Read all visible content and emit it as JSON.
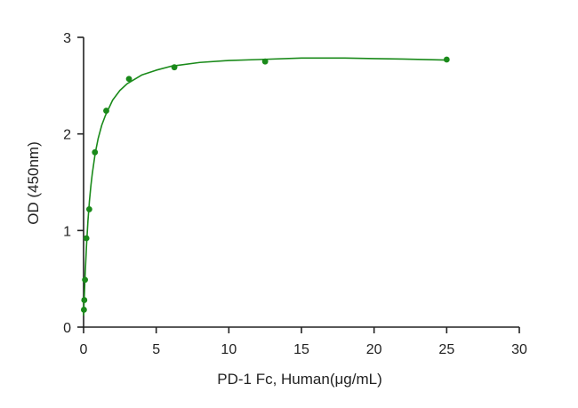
{
  "chart_data": {
    "type": "scatter",
    "xlabel": "PD-1 Fc, Human(μg/mL)",
    "ylabel": "OD (450nm)",
    "xlim": [
      0,
      30
    ],
    "ylim": [
      0,
      3
    ],
    "x_ticks": [
      "0",
      "5",
      "10",
      "15",
      "20",
      "25",
      "30"
    ],
    "y_ticks": [
      "0",
      "1",
      "2",
      "3"
    ],
    "grid": false,
    "color": "#1a8a1a",
    "series": [
      {
        "x": [
          0.024,
          0.049,
          0.098,
          0.195,
          0.39,
          0.78,
          1.56,
          3.125,
          6.25,
          12.5,
          25
        ],
        "y": [
          0.18,
          0.28,
          0.49,
          0.92,
          1.22,
          1.81,
          2.24,
          2.57,
          2.69,
          2.75,
          2.77
        ]
      }
    ],
    "fit": {
      "type": "curve",
      "x": [
        0,
        0.1,
        0.2,
        0.3,
        0.4,
        0.5,
        0.6,
        0.8,
        1.0,
        1.25,
        1.5,
        2,
        2.5,
        3,
        4,
        5,
        6,
        8,
        10,
        12,
        15,
        18,
        20,
        22,
        25
      ],
      "y": [
        0.12,
        0.52,
        0.84,
        1.1,
        1.3,
        1.46,
        1.59,
        1.8,
        1.95,
        2.09,
        2.19,
        2.35,
        2.45,
        2.52,
        2.61,
        2.66,
        2.7,
        2.74,
        2.76,
        2.77,
        2.785,
        2.785,
        2.78,
        2.775,
        2.765
      ]
    }
  }
}
